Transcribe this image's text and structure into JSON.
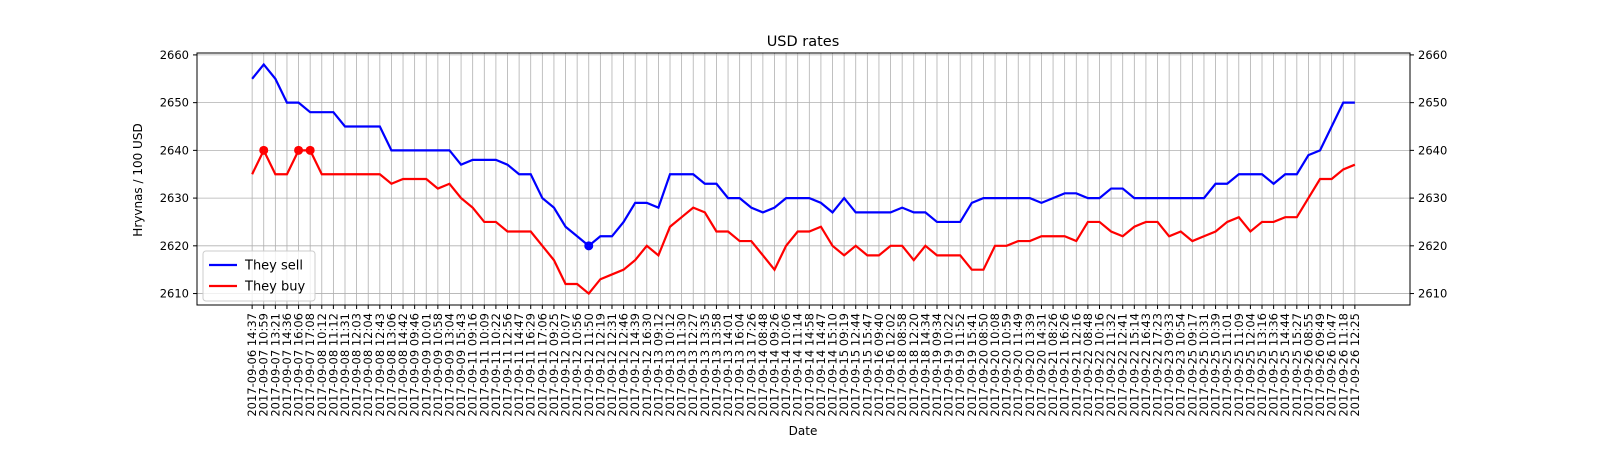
{
  "chart_data": {
    "type": "line",
    "title": "USD rates",
    "x_label": "Date",
    "y_label": "Hryvnas / 100 USD",
    "categories": [
      "2017-09-06 14:37",
      "2017-09-07 10:59",
      "2017-09-07 13:21",
      "2017-09-07 14:36",
      "2017-09-07 16:06",
      "2017-09-07 17:08",
      "2017-09-08 10:12",
      "2017-09-08 11:12",
      "2017-09-08 11:31",
      "2017-09-08 12:03",
      "2017-09-08 12:04",
      "2017-09-08 12:43",
      "2017-09-08 13:06",
      "2017-09-08 14:42",
      "2017-09-09 09:46",
      "2017-09-09 10:01",
      "2017-09-09 10:58",
      "2017-09-09 13:04",
      "2017-09-09 15:43",
      "2017-09-11 09:16",
      "2017-09-11 10:09",
      "2017-09-11 10:22",
      "2017-09-11 12:56",
      "2017-09-11 14:47",
      "2017-09-11 16:29",
      "2017-09-11 17:06",
      "2017-09-12 09:25",
      "2017-09-12 10:07",
      "2017-09-12 10:56",
      "2017-09-12 11:50",
      "2017-09-12 12:19",
      "2017-09-12 12:31",
      "2017-09-12 12:46",
      "2017-09-12 14:39",
      "2017-09-12 16:30",
      "2017-09-13 09:12",
      "2017-09-13 10:12",
      "2017-09-13 11:30",
      "2017-09-13 12:27",
      "2017-09-13 13:35",
      "2017-09-13 13:58",
      "2017-09-13 14:01",
      "2017-09-13 16:04",
      "2017-09-13 17:26",
      "2017-09-14 08:48",
      "2017-09-14 09:26",
      "2017-09-14 10:06",
      "2017-09-14 11:14",
      "2017-09-14 14:58",
      "2017-09-14 14:47",
      "2017-09-14 15:10",
      "2017-09-15 09:19",
      "2017-09-15 12:44",
      "2017-09-15 15:47",
      "2017-09-16 09:40",
      "2017-09-16 12:02",
      "2017-09-18 08:58",
      "2017-09-18 12:20",
      "2017-09-18 14:34",
      "2017-09-19 09:34",
      "2017-09-19 10:22",
      "2017-09-19 11:52",
      "2017-09-19 15:41",
      "2017-09-20 08:50",
      "2017-09-20 10:08",
      "2017-09-20 10:59",
      "2017-09-20 11:49",
      "2017-09-20 13:39",
      "2017-09-20 14:31",
      "2017-09-21 08:26",
      "2017-09-21 16:26",
      "2017-09-21 12:16",
      "2017-09-22 08:48",
      "2017-09-22 10:16",
      "2017-09-22 11:32",
      "2017-09-22 12:41",
      "2017-09-22 15:14",
      "2017-09-22 16:43",
      "2017-09-22 17:23",
      "2017-09-23 09:33",
      "2017-09-23 10:54",
      "2017-09-25 09:17",
      "2017-09-25 10:31",
      "2017-09-25 10:39",
      "2017-09-25 11:01",
      "2017-09-25 11:09",
      "2017-09-25 12:04",
      "2017-09-25 13:16",
      "2017-09-25 13:36",
      "2017-09-25 14:44",
      "2017-09-25 15:27",
      "2017-09-26 08:55",
      "2017-09-26 09:49",
      "2017-09-26 10:47",
      "2017-09-26 11:18",
      "2017-09-26 12:25"
    ],
    "series": [
      {
        "name": "They sell",
        "color": "#0000ff",
        "markers": [
          29
        ],
        "values": [
          2655,
          2658,
          2655,
          2650,
          2650,
          2648,
          2648,
          2648,
          2645,
          2645,
          2645,
          2645,
          2640,
          2640,
          2640,
          2640,
          2640,
          2640,
          2637,
          2638,
          2638,
          2638,
          2637,
          2635,
          2635,
          2630,
          2628,
          2624,
          2622,
          2620,
          2622,
          2622,
          2625,
          2629,
          2629,
          2628,
          2635,
          2635,
          2635,
          2633,
          2633,
          2630,
          2630,
          2628,
          2627,
          2628,
          2630,
          2630,
          2630,
          2629,
          2627,
          2630,
          2627,
          2627,
          2627,
          2627,
          2628,
          2627,
          2627,
          2625,
          2625,
          2625,
          2629,
          2630,
          2630,
          2630,
          2630,
          2630,
          2629,
          2630,
          2631,
          2631,
          2630,
          2630,
          2632,
          2632,
          2630,
          2630,
          2630,
          2630,
          2630,
          2630,
          2630,
          2633,
          2633,
          2635,
          2635,
          2635,
          2633,
          2635,
          2635,
          2639,
          2640,
          2645,
          2650,
          2650
        ]
      },
      {
        "name": "They buy",
        "color": "#ff0000",
        "markers": [
          1,
          4,
          5
        ],
        "values": [
          2635,
          2640,
          2635,
          2635,
          2640,
          2640,
          2635,
          2635,
          2635,
          2635,
          2635,
          2635,
          2633,
          2634,
          2634,
          2634,
          2632,
          2633,
          2630,
          2628,
          2625,
          2625,
          2623,
          2623,
          2623,
          2620,
          2617,
          2612,
          2612,
          2610,
          2613,
          2614,
          2615,
          2617,
          2620,
          2618,
          2624,
          2626,
          2628,
          2627,
          2623,
          2623,
          2621,
          2621,
          2618,
          2615,
          2620,
          2623,
          2623,
          2624,
          2620,
          2618,
          2620,
          2618,
          2618,
          2620,
          2620,
          2617,
          2620,
          2618,
          2618,
          2618,
          2615,
          2615,
          2620,
          2620,
          2621,
          2621,
          2622,
          2622,
          2622,
          2621,
          2625,
          2625,
          2623,
          2622,
          2624,
          2625,
          2625,
          2622,
          2623,
          2621,
          2622,
          2623,
          2625,
          2626,
          2623,
          2625,
          2625,
          2626,
          2626,
          2630,
          2634,
          2634,
          2636,
          2637
        ]
      }
    ],
    "ylim": [
      2607.6,
      2660.4
    ],
    "yticks": [
      2610,
      2620,
      2630,
      2640,
      2650,
      2660
    ],
    "y2lim": [
      2607.6,
      2660.4
    ],
    "y2ticks": [
      2610,
      2620,
      2630,
      2640,
      2650,
      2660
    ],
    "grid": true,
    "legend": "lower left"
  }
}
